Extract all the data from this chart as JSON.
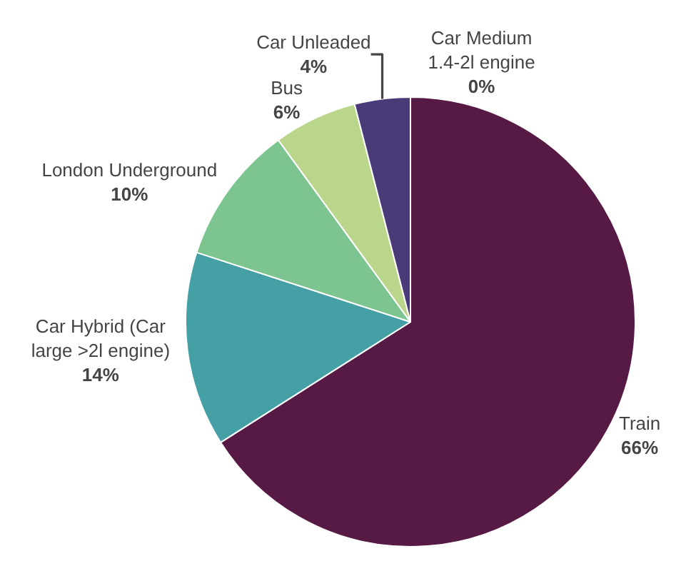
{
  "chart_data": {
    "type": "pie",
    "categories": [
      "Train",
      "Car Hybrid (Car\nlarge >2l engine)",
      "London Underground",
      "Bus",
      "Car Unleaded",
      "Car Medium\n1.4-2l engine"
    ],
    "values": [
      66,
      14,
      10,
      6,
      4,
      0
    ],
    "value_labels": [
      "66%",
      "14%",
      "10%",
      "6%",
      "4%",
      "0%"
    ],
    "colors": [
      "#561a45",
      "#45a0a5",
      "#7cc490",
      "#b9d68a",
      "#4a3a77",
      "#8a3a8a"
    ],
    "legend": false
  }
}
